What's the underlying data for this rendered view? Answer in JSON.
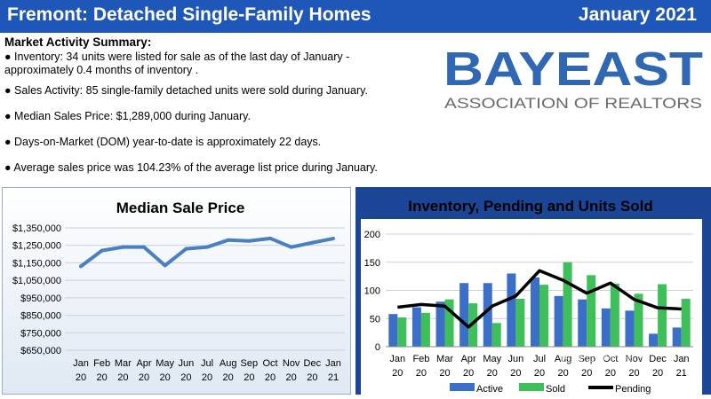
{
  "header": {
    "title": "Fremont: Detached Single-Family Homes",
    "date": "January 2021",
    "bar_color": "#1f57b8"
  },
  "summary": {
    "heading": "Market Activity Summary:",
    "bullets": [
      "Inventory: 34 units were listed for sale as of the last day of January -",
      "approximately 0.4 months of inventory .",
      "Sales Activity: 85 single-family detached units were sold during January.",
      "Median Sales Price: $1,289,000 during January.",
      "Days-on-Market (DOM) year-to-date is approximately 22 days.",
      "Average sales price was 104.23% of the average list price during January."
    ]
  },
  "logo": {
    "text": "BAYEAST",
    "subtext": "ASSOCIATION OF REALTORS",
    "brand_color": "#2f67b2",
    "sub_color": "#6b6b6b"
  },
  "watermark": "回金山地产资讯",
  "chart_data": [
    {
      "type": "line",
      "title": "Median Sale Price",
      "categories": [
        [
          "Jan",
          "20"
        ],
        [
          "Feb",
          "20"
        ],
        [
          "Mar",
          "20"
        ],
        [
          "Apr",
          "20"
        ],
        [
          "May",
          "20"
        ],
        [
          "Jun",
          "20"
        ],
        [
          "Jul",
          "20"
        ],
        [
          "Aug",
          "20"
        ],
        [
          "Sep",
          "20"
        ],
        [
          "Oct",
          "20"
        ],
        [
          "Nov",
          "20"
        ],
        [
          "Dec",
          "20"
        ],
        [
          "Jan",
          "21"
        ]
      ],
      "series": [
        {
          "values": [
            1130000,
            1220000,
            1240000,
            1240000,
            1135000,
            1230000,
            1240000,
            1280000,
            1275000,
            1290000,
            1240000,
            1265000,
            1289000
          ],
          "color": "#4a7fc1"
        }
      ],
      "ylim": [
        650000,
        1350000
      ],
      "yticks": [
        650000,
        750000,
        850000,
        950000,
        1050000,
        1150000,
        1250000,
        1350000
      ],
      "ytick_labels": [
        "$650,000",
        "$750,000",
        "$850,000",
        "$950,000",
        "$1,050,000",
        "$1,150,000",
        "$1,250,000",
        "$1,350,000"
      ],
      "grid": true
    },
    {
      "type": "bar",
      "title": "Inventory, Pending and Units Sold",
      "categories": [
        [
          "Jan",
          "20"
        ],
        [
          "Feb",
          "20"
        ],
        [
          "Mar",
          "20"
        ],
        [
          "Apr",
          "20"
        ],
        [
          "May",
          "20"
        ],
        [
          "Jun",
          "20"
        ],
        [
          "Jul",
          "20"
        ],
        [
          "Aug",
          "20"
        ],
        [
          "Sep",
          "20"
        ],
        [
          "Oct",
          "20"
        ],
        [
          "Nov",
          "20"
        ],
        [
          "Dec",
          "20"
        ],
        [
          "Jan",
          "21"
        ]
      ],
      "series": [
        {
          "name": "Active",
          "type": "bar",
          "color": "#3b6fc7",
          "values": [
            58,
            70,
            80,
            113,
            113,
            130,
            123,
            90,
            84,
            68,
            64,
            23,
            34
          ]
        },
        {
          "name": "Sold",
          "type": "bar",
          "color": "#3fbf5a",
          "values": [
            52,
            60,
            84,
            77,
            42,
            85,
            110,
            150,
            127,
            112,
            94,
            111,
            85
          ]
        },
        {
          "name": "Pending",
          "type": "line",
          "color": "#000000",
          "values": [
            70,
            75,
            72,
            35,
            72,
            90,
            135,
            118,
            95,
            113,
            84,
            69,
            67
          ]
        }
      ],
      "ylim": [
        0,
        200
      ],
      "yticks": [
        0,
        50,
        100,
        150,
        200
      ],
      "grid": true,
      "legend": "bottom"
    }
  ]
}
